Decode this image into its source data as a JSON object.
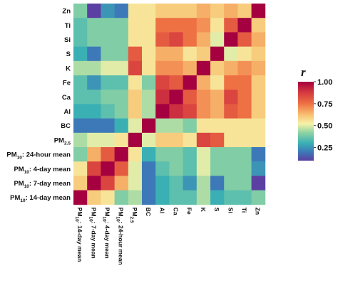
{
  "chart_data": {
    "type": "heatmap",
    "x_labels": [
      {
        "base": "PM",
        "sub": "10",
        "suffix": ": 14-day mean"
      },
      {
        "base": "PM",
        "sub": "10",
        "suffix": ": 7-day mean"
      },
      {
        "base": "PM",
        "sub": "10",
        "suffix": ": 4-day mean"
      },
      {
        "base": "PM",
        "sub": "10",
        "suffix": ": 24-hour mean"
      },
      {
        "base": "PM",
        "sub": "2.5",
        "suffix": ""
      },
      {
        "base": "BC",
        "sub": "",
        "suffix": ""
      },
      {
        "base": "Al",
        "sub": "",
        "suffix": ""
      },
      {
        "base": "Ca",
        "sub": "",
        "suffix": ""
      },
      {
        "base": "Fe",
        "sub": "",
        "suffix": ""
      },
      {
        "base": "K",
        "sub": "",
        "suffix": ""
      },
      {
        "base": "S",
        "sub": "",
        "suffix": ""
      },
      {
        "base": "Si",
        "sub": "",
        "suffix": ""
      },
      {
        "base": "Ti",
        "sub": "",
        "suffix": ""
      },
      {
        "base": "Zn",
        "sub": "",
        "suffix": ""
      }
    ],
    "y_labels_top_to_bottom": [
      {
        "base": "Zn",
        "sub": "",
        "suffix": ""
      },
      {
        "base": "Ti",
        "sub": "",
        "suffix": ""
      },
      {
        "base": "Si",
        "sub": "",
        "suffix": ""
      },
      {
        "base": "S",
        "sub": "",
        "suffix": ""
      },
      {
        "base": "K",
        "sub": "",
        "suffix": ""
      },
      {
        "base": "Fe",
        "sub": "",
        "suffix": ""
      },
      {
        "base": "Ca",
        "sub": "",
        "suffix": ""
      },
      {
        "base": "Al",
        "sub": "",
        "suffix": ""
      },
      {
        "base": "BC",
        "sub": "",
        "suffix": ""
      },
      {
        "base": "PM",
        "sub": "2.5",
        "suffix": ""
      },
      {
        "base": "PM",
        "sub": "10",
        "suffix": ": 24-hour mean"
      },
      {
        "base": "PM",
        "sub": "10",
        "suffix": ": 4-day mean"
      },
      {
        "base": "PM",
        "sub": "10",
        "suffix": ": 7-day mean"
      },
      {
        "base": "PM",
        "sub": "10",
        "suffix": ": 14-day mean"
      }
    ],
    "values_rows_top_to_bottom": [
      [
        0.4,
        0.1,
        0.25,
        0.2,
        0.55,
        0.55,
        0.6,
        0.6,
        0.6,
        0.65,
        0.6,
        0.65,
        0.6,
        1.0
      ],
      [
        0.35,
        0.4,
        0.4,
        0.4,
        0.55,
        0.55,
        0.75,
        0.75,
        0.75,
        0.7,
        0.55,
        0.8,
        1.0,
        0.6
      ],
      [
        0.35,
        0.4,
        0.4,
        0.4,
        0.55,
        0.55,
        0.8,
        0.85,
        0.75,
        0.65,
        0.5,
        1.0,
        0.8,
        0.65
      ],
      [
        0.3,
        0.2,
        0.4,
        0.4,
        0.8,
        0.55,
        0.65,
        0.65,
        0.55,
        0.6,
        1.0,
        0.5,
        0.55,
        0.6
      ],
      [
        0.45,
        0.45,
        0.5,
        0.5,
        0.85,
        0.55,
        0.7,
        0.7,
        0.65,
        1.0,
        0.6,
        0.65,
        0.7,
        0.65
      ],
      [
        0.35,
        0.25,
        0.35,
        0.35,
        0.55,
        0.4,
        0.85,
        0.8,
        1.0,
        0.65,
        0.55,
        0.75,
        0.75,
        0.6
      ],
      [
        0.35,
        0.35,
        0.4,
        0.4,
        0.6,
        0.45,
        0.9,
        1.0,
        0.8,
        0.7,
        0.65,
        0.85,
        0.75,
        0.6
      ],
      [
        0.3,
        0.3,
        0.35,
        0.4,
        0.6,
        0.45,
        1.0,
        0.9,
        0.85,
        0.7,
        0.65,
        0.8,
        0.75,
        0.6
      ],
      [
        0.2,
        0.2,
        0.2,
        0.3,
        0.5,
        1.0,
        0.45,
        0.45,
        0.4,
        0.55,
        0.55,
        0.55,
        0.55,
        0.55
      ],
      [
        0.45,
        0.5,
        0.5,
        0.55,
        1.0,
        0.5,
        0.6,
        0.6,
        0.55,
        0.85,
        0.8,
        0.55,
        0.55,
        0.55
      ],
      [
        0.4,
        0.65,
        0.8,
        1.0,
        0.55,
        0.3,
        0.4,
        0.4,
        0.35,
        0.5,
        0.4,
        0.4,
        0.4,
        0.2
      ],
      [
        0.55,
        0.85,
        1.0,
        0.8,
        0.5,
        0.2,
        0.35,
        0.4,
        0.35,
        0.5,
        0.4,
        0.4,
        0.4,
        0.25
      ],
      [
        0.6,
        1.0,
        0.85,
        0.65,
        0.5,
        0.2,
        0.3,
        0.35,
        0.25,
        0.45,
        0.2,
        0.4,
        0.4,
        0.1
      ],
      [
        1.0,
        0.6,
        0.55,
        0.4,
        0.45,
        0.2,
        0.3,
        0.35,
        0.35,
        0.45,
        0.3,
        0.35,
        0.35,
        0.4
      ]
    ],
    "color_scale": {
      "title": "r",
      "min": 0.1,
      "max": 1.0,
      "ticks": [
        "1.00",
        "0.75",
        "0.50",
        "0.25"
      ],
      "tick_values": [
        1.0,
        0.75,
        0.5,
        0.25
      ],
      "stops": [
        {
          "v": 0.1,
          "c": "#5b3fa3"
        },
        {
          "v": 0.2,
          "c": "#3d79b8"
        },
        {
          "v": 0.3,
          "c": "#3ab0b4"
        },
        {
          "v": 0.42,
          "c": "#8fd3a3"
        },
        {
          "v": 0.52,
          "c": "#f6f2a9"
        },
        {
          "v": 0.62,
          "c": "#f9c272"
        },
        {
          "v": 0.75,
          "c": "#ee7144"
        },
        {
          "v": 0.88,
          "c": "#d4383f"
        },
        {
          "v": 1.0,
          "c": "#a5003f"
        }
      ]
    }
  }
}
